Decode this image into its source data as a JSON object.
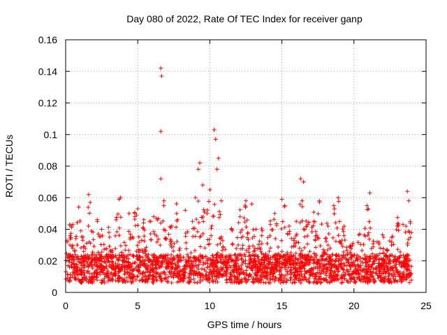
{
  "chart_data": {
    "type": "scatter",
    "title": "Day 080 of 2022, Rate Of TEC Index for receiver ganp",
    "xlabel": "GPS time / hours",
    "ylabel": "ROTI / TECUs",
    "xlim": [
      0,
      25
    ],
    "ylim": [
      0,
      0.16
    ],
    "xticks": [
      0,
      5,
      10,
      15,
      20,
      25
    ],
    "yticks": [
      0,
      0.02,
      0.04,
      0.06,
      0.08,
      0.1,
      0.12,
      0.14,
      0.16
    ],
    "xtick_labels": [
      "0",
      "5",
      "10",
      "15",
      "20",
      "25"
    ],
    "ytick_labels": [
      "0",
      "0.02",
      "0.04",
      "0.06",
      "0.08",
      "0.1",
      "0.12",
      "0.14",
      "0.16"
    ],
    "grid": true,
    "marker": "+",
    "marker_color": "#ff0000",
    "series": [
      {
        "name": "ROTI",
        "points": [
          [
            0.1,
            0.032
          ],
          [
            0.3,
            0.036
          ],
          [
            0.5,
            0.043
          ],
          [
            0.8,
            0.03
          ],
          [
            0.9,
            0.054
          ],
          [
            1.2,
            0.035
          ],
          [
            1.6,
            0.062
          ],
          [
            1.7,
            0.057
          ],
          [
            2.2,
            0.045
          ],
          [
            2.5,
            0.04
          ],
          [
            3.0,
            0.038
          ],
          [
            3.5,
            0.046
          ],
          [
            3.7,
            0.059
          ],
          [
            3.8,
            0.06
          ],
          [
            4.4,
            0.05
          ],
          [
            4.8,
            0.048
          ],
          [
            5.0,
            0.053
          ],
          [
            5.4,
            0.044
          ],
          [
            5.9,
            0.045
          ],
          [
            6.1,
            0.048
          ],
          [
            6.3,
            0.047
          ],
          [
            6.6,
            0.142
          ],
          [
            6.65,
            0.137
          ],
          [
            6.6,
            0.102
          ],
          [
            6.6,
            0.072
          ],
          [
            6.8,
            0.055
          ],
          [
            7.3,
            0.041
          ],
          [
            7.7,
            0.05
          ],
          [
            8.3,
            0.052
          ],
          [
            8.8,
            0.045
          ],
          [
            9.0,
            0.06
          ],
          [
            9.2,
            0.078
          ],
          [
            9.3,
            0.082
          ],
          [
            9.5,
            0.068
          ],
          [
            9.8,
            0.05
          ],
          [
            10.0,
            0.065
          ],
          [
            10.3,
            0.103
          ],
          [
            10.4,
            0.097
          ],
          [
            10.5,
            0.078
          ],
          [
            10.6,
            0.085
          ],
          [
            10.8,
            0.058
          ],
          [
            11.5,
            0.04
          ],
          [
            12.1,
            0.048
          ],
          [
            12.5,
            0.058
          ],
          [
            12.9,
            0.056
          ],
          [
            13.2,
            0.04
          ],
          [
            13.6,
            0.036
          ],
          [
            14.2,
            0.043
          ],
          [
            14.5,
            0.05
          ],
          [
            15.0,
            0.059
          ],
          [
            15.2,
            0.055
          ],
          [
            15.5,
            0.042
          ],
          [
            16.0,
            0.045
          ],
          [
            16.3,
            0.072
          ],
          [
            16.5,
            0.07
          ],
          [
            16.4,
            0.058
          ],
          [
            16.8,
            0.043
          ],
          [
            17.2,
            0.045
          ],
          [
            17.6,
            0.058
          ],
          [
            18.2,
            0.042
          ],
          [
            18.6,
            0.055
          ],
          [
            18.9,
            0.06
          ],
          [
            19.3,
            0.036
          ],
          [
            19.9,
            0.03
          ],
          [
            20.4,
            0.037
          ],
          [
            20.9,
            0.055
          ],
          [
            21.1,
            0.063
          ],
          [
            21.0,
            0.053
          ],
          [
            21.6,
            0.032
          ],
          [
            22.0,
            0.025
          ],
          [
            22.6,
            0.03
          ],
          [
            23.0,
            0.042
          ],
          [
            23.4,
            0.043
          ],
          [
            23.7,
            0.064
          ],
          [
            23.8,
            0.058
          ],
          [
            23.9,
            0.045
          ],
          [
            23.85,
            0.038
          ]
        ]
      }
    ]
  }
}
